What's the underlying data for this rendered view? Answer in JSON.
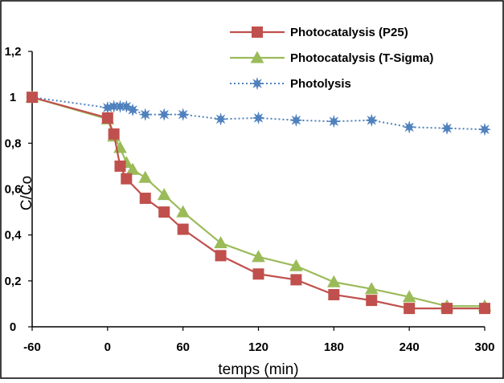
{
  "chart_data": {
    "type": "line",
    "xlabel": "temps (min)",
    "ylabel": "C/Co",
    "xlim": [
      -60,
      300
    ],
    "ylim": [
      0,
      1.2
    ],
    "x_ticks": [
      -60,
      0,
      60,
      120,
      180,
      240,
      300
    ],
    "x_tick_labels": [
      "-60",
      "0",
      "60",
      "120",
      "180",
      "240",
      "300"
    ],
    "y_ticks": [
      0,
      0.2,
      0.4,
      0.6,
      0.8,
      1,
      1.2
    ],
    "y_tick_labels": [
      "0",
      "0,2",
      "0,4",
      "0,6",
      "0,8",
      "1",
      "1,2"
    ],
    "grid": false,
    "legend_position": "top-right",
    "series": [
      {
        "name": "Photocatalysis (P25)",
        "color": "#c0504d",
        "marker": "square",
        "line_style": "solid",
        "x": [
          -60,
          0,
          5,
          10,
          15,
          30,
          45,
          60,
          90,
          120,
          150,
          180,
          210,
          240,
          270,
          300
        ],
        "y": [
          1.0,
          0.91,
          0.84,
          0.7,
          0.645,
          0.56,
          0.5,
          0.425,
          0.31,
          0.23,
          0.205,
          0.14,
          0.115,
          0.08,
          0.08,
          0.08
        ]
      },
      {
        "name": "Photocatalysis (T-Sigma)",
        "color": "#9bbb59",
        "marker": "triangle",
        "line_style": "solid",
        "x": [
          -60,
          0,
          5,
          10,
          15,
          20,
          30,
          45,
          60,
          90,
          120,
          150,
          180,
          210,
          240,
          270,
          300
        ],
        "y": [
          1.0,
          0.905,
          0.83,
          0.78,
          0.715,
          0.685,
          0.65,
          0.575,
          0.5,
          0.365,
          0.305,
          0.265,
          0.195,
          0.165,
          0.13,
          0.09,
          0.09
        ]
      },
      {
        "name": "Photolysis",
        "color": "#4f81bd",
        "marker": "star",
        "line_style": "dotted",
        "x": [
          -60,
          0,
          5,
          10,
          15,
          20,
          30,
          45,
          60,
          90,
          120,
          150,
          180,
          210,
          240,
          270,
          300
        ],
        "y": [
          1.0,
          0.955,
          0.96,
          0.96,
          0.96,
          0.945,
          0.925,
          0.925,
          0.925,
          0.905,
          0.91,
          0.9,
          0.895,
          0.9,
          0.87,
          0.865,
          0.86
        ]
      }
    ]
  }
}
